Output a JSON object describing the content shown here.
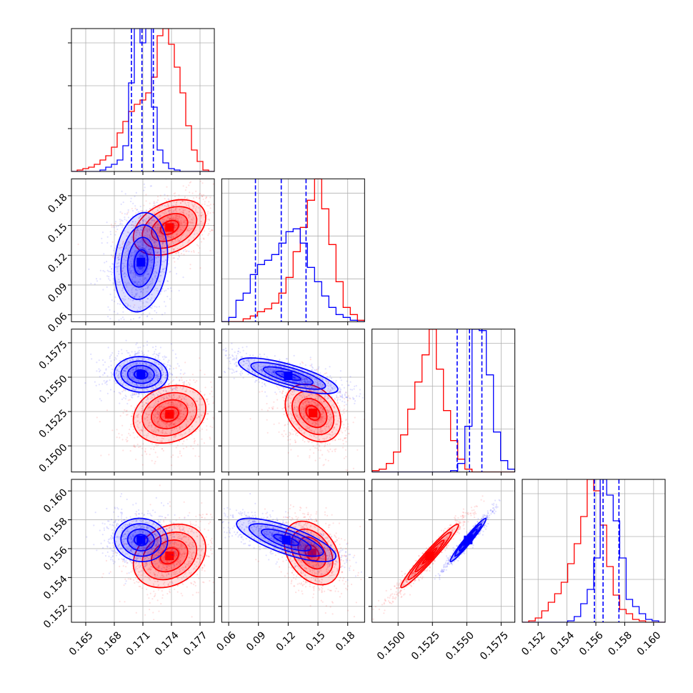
{
  "chart_data": {
    "type": "corner",
    "grid": true,
    "colors": {
      "series_a": "#0000ff",
      "series_b": "#ff0000"
    },
    "parameters": [
      {
        "range": [
          0.1635,
          0.1785
        ],
        "ticks": [
          0.165,
          0.168,
          0.171,
          0.174,
          0.177
        ],
        "tick_labels": [
          "0.165",
          "0.168",
          "0.171",
          "0.174",
          "0.177"
        ]
      },
      {
        "range": [
          0.053,
          0.197
        ],
        "ticks": [
          0.06,
          0.09,
          0.12,
          0.15,
          0.18
        ],
        "tick_labels": [
          "0.06",
          "0.09",
          "0.12",
          "0.15",
          "0.18"
        ]
      },
      {
        "range": [
          0.1481,
          0.1585
        ],
        "ticks": [
          0.15,
          0.1525,
          0.155,
          0.1575
        ],
        "tick_labels": [
          "0.1500",
          "0.1525",
          "0.1550",
          "0.1575"
        ]
      },
      {
        "range": [
          0.1509,
          0.1608
        ],
        "ticks": [
          0.152,
          0.154,
          0.156,
          0.158,
          0.16
        ],
        "tick_labels": [
          "0.152",
          "0.154",
          "0.156",
          "0.158",
          "0.160"
        ]
      }
    ],
    "series": [
      {
        "key": "a",
        "color": "#0000ff",
        "mean": [
          0.1709,
          0.112,
          0.1552,
          0.1565
        ],
        "sd": [
          0.0014,
          0.025,
          0.00065,
          0.00075
        ],
        "quantiles": [
          [
            0.1698,
            0.1709,
            0.1721
          ],
          [
            0.087,
            0.113,
            0.138
          ],
          [
            0.1543,
            0.1552,
            0.1561
          ],
          [
            0.1559,
            0.1565,
            0.1576
          ]
        ]
      },
      {
        "key": "b",
        "color": "#ff0000",
        "mean": [
          0.1738,
          0.146,
          0.1523,
          0.1555
        ],
        "sd": [
          0.0019,
          0.014,
          0.00105,
          0.0011
        ]
      }
    ],
    "histograms": [
      {
        "edges_start": 0.1635,
        "bin_width": 0.0006,
        "a": [
          0,
          0,
          0,
          0,
          0,
          1,
          3,
          5,
          8,
          18,
          62,
          100,
          90,
          100,
          45,
          15,
          6,
          2,
          1,
          0,
          0,
          0,
          0,
          0,
          0
        ],
        "b": [
          0,
          1,
          2,
          3,
          5,
          8,
          11,
          17,
          27,
          35,
          42,
          47,
          50,
          55,
          66,
          95,
          100,
          89,
          73,
          55,
          32,
          15,
          7,
          1,
          0
        ]
      },
      {
        "edges_start": 0.053,
        "bin_width": 0.0072,
        "a": [
          0,
          3,
          15,
          20,
          33,
          40,
          43,
          47,
          55,
          63,
          65,
          55,
          38,
          28,
          18,
          10,
          5,
          3,
          1,
          0
        ],
        "b": [
          0,
          0,
          0,
          2,
          4,
          7,
          9,
          13,
          20,
          31,
          49,
          66,
          85,
          100,
          79,
          54,
          28,
          10,
          5,
          1
        ]
      },
      {
        "edges_start": 0.1481,
        "bin_width": 0.00052,
        "a": [
          0,
          0,
          0,
          0,
          0,
          0,
          0,
          0,
          0,
          0,
          0,
          1,
          6,
          32,
          100,
          99,
          68,
          28,
          8,
          2
        ],
        "b": [
          1,
          2,
          6,
          14,
          26,
          44,
          63,
          82,
          100,
          72,
          43,
          22,
          9,
          2,
          0,
          0,
          0,
          0,
          0,
          0
        ]
      },
      {
        "edges_start": 0.1509,
        "bin_width": 0.00045,
        "a": [
          0,
          0,
          0,
          0,
          0,
          0,
          0,
          1,
          4,
          13,
          23,
          45,
          100,
          89,
          71,
          45,
          16,
          11,
          6,
          2,
          1,
          0
        ],
        "b": [
          0,
          1,
          3,
          8,
          14,
          20,
          28,
          41,
          55,
          74,
          100,
          92,
          68,
          39,
          19,
          9,
          6,
          2,
          1,
          0,
          0,
          0
        ]
      }
    ],
    "pairs": [
      {
        "x": 0,
        "y": 1,
        "a_rho": 0.15,
        "b_rho": 0.35,
        "a_core": [
          0.1708,
          0.113
        ],
        "b_core": [
          0.1738,
          0.148
        ]
      },
      {
        "x": 0,
        "y": 2,
        "a_rho": -0.05,
        "b_rho": 0.2,
        "a_core": [
          0.1708,
          0.1552
        ],
        "b_core": [
          0.1738,
          0.1523
        ]
      },
      {
        "x": 1,
        "y": 2,
        "a_rho": -0.75,
        "b_rho": -0.3,
        "a_core": [
          0.12,
          0.1551
        ],
        "b_core": [
          0.145,
          0.1524
        ]
      },
      {
        "x": 0,
        "y": 3,
        "a_rho": -0.05,
        "b_rho": 0.25,
        "a_core": [
          0.1708,
          0.1566
        ],
        "b_core": [
          0.1738,
          0.1555
        ]
      },
      {
        "x": 1,
        "y": 3,
        "a_rho": -0.75,
        "b_rho": -0.35,
        "a_core": [
          0.118,
          0.1566
        ],
        "b_core": [
          0.144,
          0.1557
        ]
      },
      {
        "x": 2,
        "y": 3,
        "a_rho": 0.97,
        "b_rho": 0.97,
        "a_core": [
          0.1551,
          0.1566
        ],
        "b_core": [
          0.1523,
          0.1555
        ]
      }
    ]
  }
}
